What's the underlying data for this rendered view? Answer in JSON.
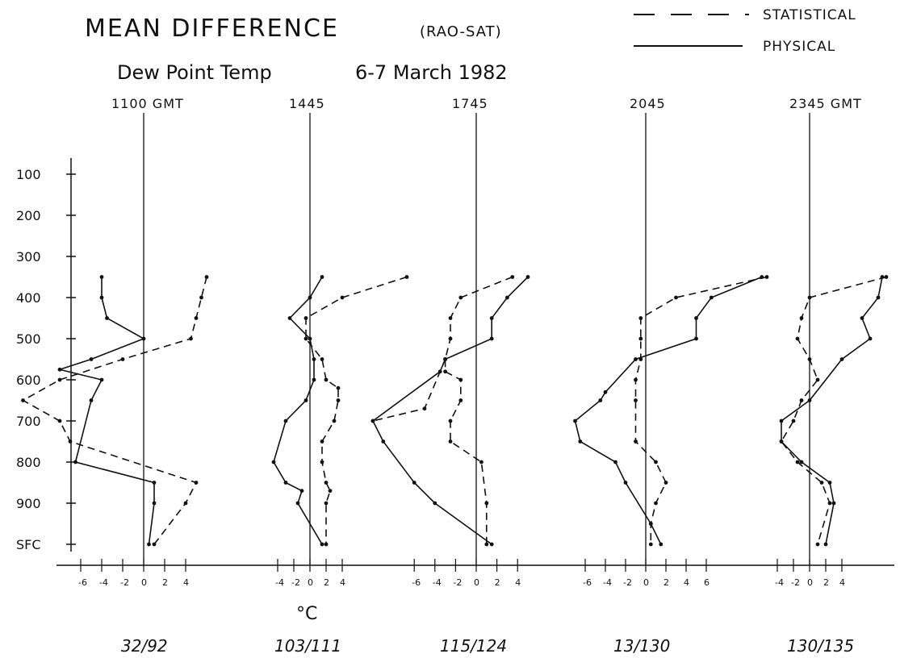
{
  "chart_data": {
    "type": "line",
    "title": "MEAN DIFFERENCE",
    "title_suffix": "(RAO-SAT)",
    "subtitle": "Dew Point Temp",
    "date": "6-7 March 1982",
    "legend": [
      {
        "name": "STATISTICAL",
        "style": "dashed"
      },
      {
        "name": "PHYSICAL",
        "style": "solid"
      }
    ],
    "xlabel": "°C",
    "y_ticks": [
      "100",
      "200",
      "300",
      "400",
      "500",
      "600",
      "700",
      "800",
      "900",
      "SFC"
    ],
    "y_tick_text": [
      "100",
      "200",
      "300",
      "400",
      "500",
      "600",
      "700",
      "800",
      "900",
      "SFC"
    ],
    "grid": false,
    "panels": [
      {
        "title": "1100 GMT",
        "xlim": [
          -7.5,
          10
        ],
        "x_tick_labels": [
          "-6",
          "-4",
          "-2",
          "0",
          "2",
          "4"
        ],
        "x_tick_values": [
          -6,
          -4,
          -2,
          0,
          2,
          4
        ],
        "count": "32/92",
        "series": [
          {
            "name": "PHYSICAL",
            "points": [
              [
                -4,
                350
              ],
              [
                -4,
                400
              ],
              [
                -3.5,
                450
              ],
              [
                0,
                500
              ],
              [
                -5,
                550
              ],
              [
                -8,
                575
              ],
              [
                -4,
                600
              ],
              [
                -5,
                650
              ],
              [
                -6.5,
                800
              ],
              [
                1,
                850
              ],
              [
                1,
                900
              ],
              [
                0.5,
                1000
              ]
            ]
          },
          {
            "name": "STATISTICAL",
            "points": [
              [
                6,
                350
              ],
              [
                5.5,
                400
              ],
              [
                5,
                450
              ],
              [
                4.5,
                500
              ],
              [
                -2,
                550
              ],
              [
                -8,
                600
              ],
              [
                -11.5,
                650
              ],
              [
                -8,
                700
              ],
              [
                -7,
                750
              ],
              [
                5,
                850
              ],
              [
                4,
                900
              ],
              [
                1,
                1000
              ]
            ]
          }
        ]
      },
      {
        "title": "1445",
        "xlim": [
          -6,
          8
        ],
        "x_tick_labels": [
          "-4",
          "-2",
          "0",
          "2",
          "4"
        ],
        "x_tick_values": [
          -4,
          -2,
          0,
          2,
          4
        ],
        "count": "103/111",
        "series": [
          {
            "name": "PHYSICAL",
            "points": [
              [
                1.5,
                350
              ],
              [
                0,
                400
              ],
              [
                -2.5,
                450
              ],
              [
                0,
                500
              ],
              [
                0.5,
                550
              ],
              [
                0.5,
                600
              ],
              [
                -0.5,
                650
              ],
              [
                -3,
                700
              ],
              [
                -4.5,
                800
              ],
              [
                -3,
                850
              ],
              [
                -1,
                870
              ],
              [
                -1.5,
                900
              ],
              [
                1.5,
                1000
              ]
            ]
          },
          {
            "name": "STATISTICAL",
            "points": [
              [
                12,
                350
              ],
              [
                4,
                400
              ],
              [
                -0.5,
                450
              ],
              [
                -0.5,
                500
              ],
              [
                1.5,
                550
              ],
              [
                2,
                600
              ],
              [
                3.5,
                620
              ],
              [
                3.5,
                650
              ],
              [
                3,
                700
              ],
              [
                1.5,
                750
              ],
              [
                1.5,
                800
              ],
              [
                2,
                850
              ],
              [
                2.5,
                870
              ],
              [
                2,
                900
              ],
              [
                2,
                1000
              ]
            ]
          }
        ]
      },
      {
        "title": "1745",
        "xlim": [
          -10,
          6
        ],
        "x_tick_labels": [
          "-6",
          "-4",
          "-2",
          "0",
          "2",
          "4"
        ],
        "x_tick_values": [
          -6,
          -4,
          -2,
          0,
          2,
          4
        ],
        "count": "115/124",
        "series": [
          {
            "name": "PHYSICAL",
            "points": [
              [
                5,
                350
              ],
              [
                3,
                400
              ],
              [
                1.5,
                450
              ],
              [
                1.5,
                500
              ],
              [
                -3,
                550
              ],
              [
                -3.5,
                580
              ],
              [
                -10,
                700
              ],
              [
                -9,
                750
              ],
              [
                -6,
                850
              ],
              [
                -4,
                900
              ],
              [
                1.5,
                1000
              ]
            ]
          },
          {
            "name": "STATISTICAL",
            "points": [
              [
                3.5,
                350
              ],
              [
                -1.5,
                400
              ],
              [
                -2.5,
                450
              ],
              [
                -2.5,
                500
              ],
              [
                -3,
                550
              ],
              [
                -3,
                580
              ],
              [
                -1.5,
                600
              ],
              [
                -1.5,
                650
              ],
              [
                -2.5,
                700
              ],
              [
                -2.5,
                750
              ],
              [
                0.5,
                800
              ],
              [
                1,
                900
              ],
              [
                1,
                1000
              ]
            ]
          },
          {
            "name": "STATISTICAL",
            "points": [
              [
                -3,
                550
              ],
              [
                -5,
                670
              ],
              [
                -10,
                700
              ]
            ]
          }
        ]
      },
      {
        "title": "2045",
        "xlim": [
          -8,
          8
        ],
        "x_tick_labels": [
          "-6",
          "-4",
          "-2",
          "0",
          "2",
          "4",
          "6"
        ],
        "x_tick_values": [
          -6,
          -4,
          -2,
          0,
          2,
          4,
          6
        ],
        "count": "13/130",
        "series": [
          {
            "name": "PHYSICAL",
            "points": [
              [
                11.5,
                350
              ],
              [
                6.5,
                400
              ],
              [
                5,
                450
              ],
              [
                5,
                500
              ],
              [
                -1,
                550
              ],
              [
                -4,
                630
              ],
              [
                -4.5,
                650
              ],
              [
                -7,
                700
              ],
              [
                -6.5,
                750
              ],
              [
                -3,
                800
              ],
              [
                -2,
                850
              ],
              [
                0.5,
                950
              ],
              [
                1.5,
                1000
              ]
            ]
          },
          {
            "name": "STATISTICAL",
            "points": [
              [
                12,
                350
              ],
              [
                3,
                400
              ],
              [
                -0.5,
                450
              ],
              [
                -0.5,
                500
              ],
              [
                -0.5,
                550
              ],
              [
                -1,
                600
              ],
              [
                -1,
                650
              ],
              [
                -1,
                750
              ],
              [
                1,
                800
              ],
              [
                2,
                850
              ],
              [
                1,
                900
              ],
              [
                0.5,
                950
              ],
              [
                0.5,
                1000
              ]
            ]
          }
        ]
      },
      {
        "title": "2345 GMT",
        "xlim": [
          -5,
          10
        ],
        "x_tick_labels": [
          "-4",
          "-2",
          "0",
          "2",
          "4"
        ],
        "x_tick_values": [
          -4,
          -2,
          0,
          2,
          4
        ],
        "count": "130/135",
        "series": [
          {
            "name": "PHYSICAL",
            "points": [
              [
                9,
                350
              ],
              [
                8.5,
                400
              ],
              [
                6.5,
                450
              ],
              [
                7.5,
                500
              ],
              [
                4,
                550
              ],
              [
                0,
                650
              ],
              [
                -3.5,
                700
              ],
              [
                -3.5,
                750
              ],
              [
                -1,
                800
              ],
              [
                2.5,
                850
              ],
              [
                3,
                900
              ],
              [
                2,
                1000
              ]
            ]
          },
          {
            "name": "STATISTICAL",
            "points": [
              [
                9.5,
                350
              ],
              [
                0,
                400
              ],
              [
                -1,
                450
              ],
              [
                -1.5,
                500
              ],
              [
                0,
                550
              ],
              [
                1,
                600
              ],
              [
                -1,
                650
              ],
              [
                -2,
                700
              ],
              [
                -3.5,
                750
              ],
              [
                -1.5,
                800
              ],
              [
                1.5,
                850
              ],
              [
                2.5,
                900
              ],
              [
                1,
                1000
              ]
            ]
          }
        ]
      }
    ]
  }
}
